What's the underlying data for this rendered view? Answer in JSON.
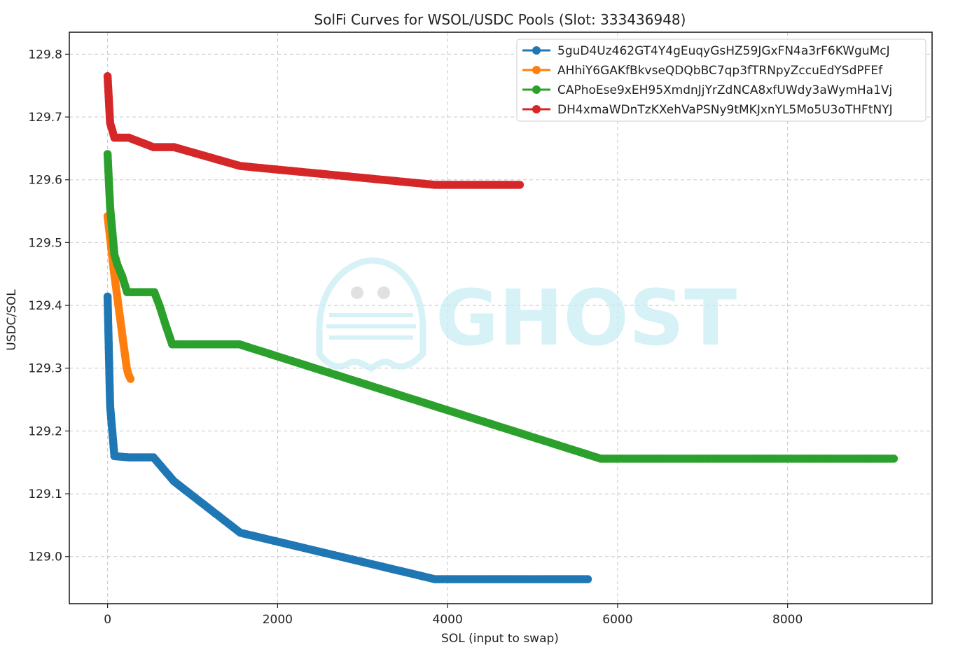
{
  "chart_data": {
    "type": "line",
    "title": "SolFi Curves for WSOL/USDC Pools (Slot: 333436948)",
    "xlabel": "SOL (input to swap)",
    "ylabel": "USDC/SOL",
    "xlim": [
      -450,
      9700
    ],
    "ylim": [
      128.925,
      129.835
    ],
    "xticks": [
      0,
      2000,
      4000,
      6000,
      8000
    ],
    "xtick_labels": [
      "0",
      "2000",
      "4000",
      "6000",
      "8000"
    ],
    "yticks": [
      129.0,
      129.1,
      129.2,
      129.3,
      129.4,
      129.5,
      129.6,
      129.7,
      129.8
    ],
    "ytick_labels": [
      "129.0",
      "129.1",
      "129.2",
      "129.3",
      "129.4",
      "129.5",
      "129.6",
      "129.7",
      "129.8"
    ],
    "grid": true,
    "legend_position": "top-right",
    "watermark": "GHOST",
    "series": [
      {
        "name": "5guD4Uz462GT4Y4gEuqyGsHZ59JGxFN4a3rF6KWguMcJ",
        "color": "#1f77b4",
        "points": [
          [
            0,
            129.414
          ],
          [
            30,
            129.24
          ],
          [
            55,
            129.2
          ],
          [
            80,
            129.16
          ],
          [
            250,
            129.158
          ],
          [
            540,
            129.158
          ],
          [
            780,
            129.12
          ],
          [
            1560,
            129.038
          ],
          [
            3850,
            128.964
          ],
          [
            5650,
            128.964
          ]
        ]
      },
      {
        "name": "AHhiY6GAKfBkvseQDQbBC7qp3fTRNpyZccuEdYSdPFEf",
        "color": "#ff7f0e",
        "points": [
          [
            0,
            129.542
          ],
          [
            25,
            129.513
          ],
          [
            50,
            129.483
          ],
          [
            75,
            129.453
          ],
          [
            100,
            129.428
          ],
          [
            125,
            129.402
          ],
          [
            150,
            129.377
          ],
          [
            175,
            129.351
          ],
          [
            200,
            129.326
          ],
          [
            225,
            129.301
          ],
          [
            245,
            129.29
          ],
          [
            270,
            129.283
          ]
        ]
      },
      {
        "name": "CAPhoEse9xEH95XmdnJjYrZdNCA8xfUWdy3aWymHa1Vj",
        "color": "#2ca02c",
        "points": [
          [
            0,
            129.641
          ],
          [
            30,
            129.556
          ],
          [
            55,
            129.519
          ],
          [
            80,
            129.481
          ],
          [
            120,
            129.463
          ],
          [
            170,
            129.447
          ],
          [
            230,
            129.421
          ],
          [
            550,
            129.421
          ],
          [
            610,
            129.4
          ],
          [
            680,
            129.37
          ],
          [
            760,
            129.338
          ],
          [
            1550,
            129.338
          ],
          [
            5800,
            129.156
          ],
          [
            9250,
            129.156
          ]
        ]
      },
      {
        "name": "DH4xmaWDnTzKXehVaPSNy9tMKJxnYL5Mo5U3oTHFtNYJ",
        "color": "#d62728",
        "points": [
          [
            0,
            129.765
          ],
          [
            30,
            129.69
          ],
          [
            55,
            129.679
          ],
          [
            80,
            129.667
          ],
          [
            250,
            129.667
          ],
          [
            540,
            129.652
          ],
          [
            780,
            129.652
          ],
          [
            1560,
            129.622
          ],
          [
            3850,
            129.592
          ],
          [
            4850,
            129.592
          ]
        ]
      }
    ]
  }
}
